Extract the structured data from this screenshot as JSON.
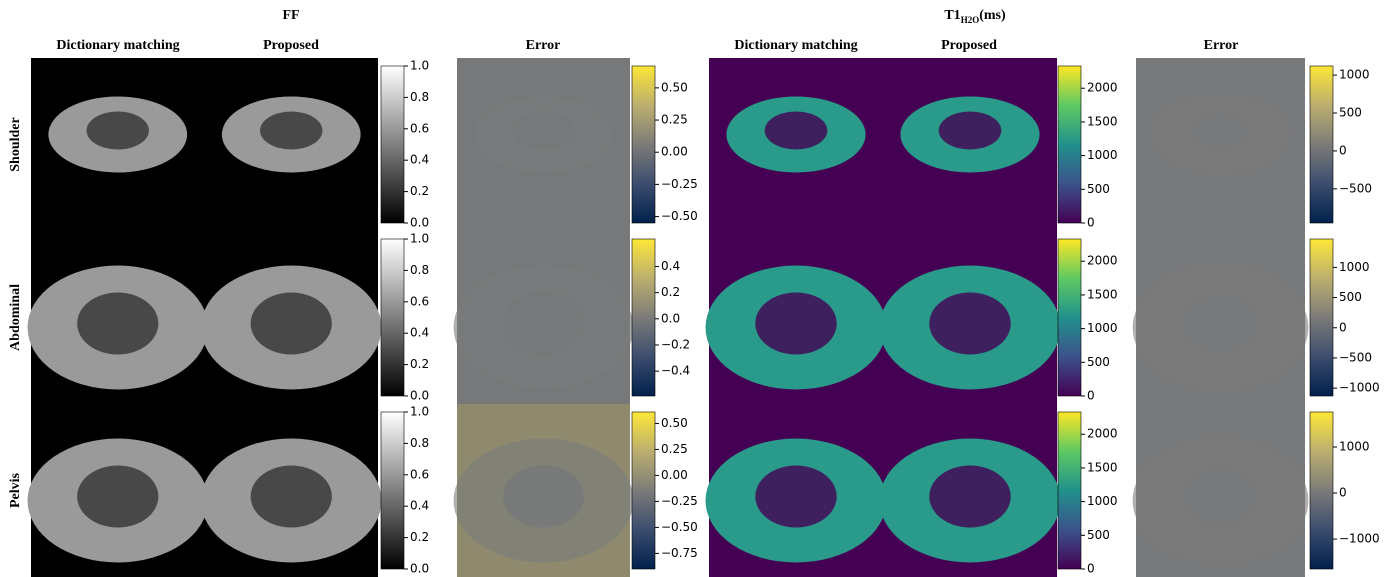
{
  "header": {
    "ff_title": "FF",
    "t1_title": {
      "main": "T1",
      "sub": "H2O",
      "unit": "(ms)"
    }
  },
  "columns": [
    "Dictionary matching",
    "Proposed",
    "Error",
    "Dictionary matching",
    "Proposed",
    "Error"
  ],
  "rows": [
    {
      "label": "Shoulder",
      "colorbars": [
        {
          "colormap": "gray",
          "lim": [
            0,
            1
          ],
          "ticks": [
            {
              "value": 0,
              "label": "0.0"
            },
            0.2,
            0.4,
            0.6,
            0.8,
            {
              "value": 1,
              "label": "1.0"
            }
          ]
        },
        {
          "colormap": "cividis",
          "lim": [
            -0.55,
            0.67
          ],
          "ticks": [
            {
              "value": -0.5,
              "label": "−0.50"
            },
            {
              "value": -0.25,
              "label": "−0.25"
            },
            {
              "value": 0,
              "label": "0.00"
            },
            0.25,
            {
              "value": 0.5,
              "label": "0.50"
            }
          ]
        },
        {
          "colormap": "viridis",
          "lim": [
            0,
            2330
          ],
          "ticks": [
            0,
            500,
            1000,
            1500,
            2000
          ]
        },
        {
          "colormap": "cividis",
          "lim": [
            -950,
            1120
          ],
          "ticks": [
            {
              "value": -500,
              "label": "−500"
            },
            0,
            500,
            1000
          ]
        }
      ]
    },
    {
      "label": "Abdominal",
      "colorbars": [
        {
          "colormap": "gray",
          "lim": [
            0,
            1
          ],
          "ticks": [
            {
              "value": 0,
              "label": "0.0"
            },
            0.2,
            0.4,
            0.6,
            0.8,
            {
              "value": 1,
              "label": "1.0"
            }
          ]
        },
        {
          "colormap": "cividis",
          "lim": [
            -0.59,
            0.61
          ],
          "ticks": [
            {
              "value": -0.4,
              "label": "−0.4"
            },
            {
              "value": -0.2,
              "label": "−0.2"
            },
            {
              "value": 0,
              "label": "0.0"
            },
            0.2,
            0.4
          ]
        },
        {
          "colormap": "viridis",
          "lim": [
            0,
            2330
          ],
          "ticks": [
            0,
            500,
            1000,
            1500,
            2000
          ]
        },
        {
          "colormap": "cividis",
          "lim": [
            -1130,
            1470
          ],
          "ticks": [
            {
              "value": -1000,
              "label": "−1000"
            },
            {
              "value": -500,
              "label": "−500"
            },
            0,
            500,
            1000
          ]
        }
      ]
    },
    {
      "label": "Pelvis",
      "colorbars": [
        {
          "colormap": "gray",
          "lim": [
            0,
            1
          ],
          "ticks": [
            {
              "value": 0,
              "label": "0.0"
            },
            0.2,
            0.4,
            0.6,
            0.8,
            {
              "value": 1,
              "label": "1.0"
            }
          ]
        },
        {
          "colormap": "cividis",
          "lim": [
            -0.9,
            0.61
          ],
          "ticks": [
            {
              "value": -0.75,
              "label": "−0.75"
            },
            {
              "value": -0.5,
              "label": "−0.50"
            },
            {
              "value": -0.25,
              "label": "−0.25"
            },
            {
              "value": 0,
              "label": "0.00"
            },
            0.25,
            {
              "value": 0.5,
              "label": "0.50"
            }
          ]
        },
        {
          "colormap": "viridis",
          "lim": [
            0,
            2330
          ],
          "ticks": [
            0,
            500,
            1000,
            1500,
            2000
          ]
        },
        {
          "colormap": "cividis",
          "lim": [
            -1650,
            1760
          ],
          "ticks": [
            {
              "value": -1000,
              "label": "−1000"
            },
            0,
            1000
          ]
        }
      ]
    }
  ]
}
